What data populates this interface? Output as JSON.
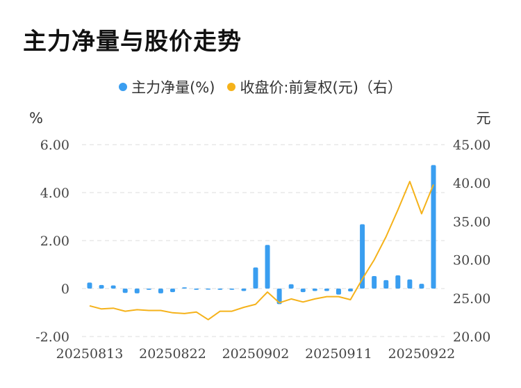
{
  "title": "主力净量与股价走势",
  "legend": {
    "bar_label": "主力净量(%)",
    "line_label": "收盘价:前复权(元)（右）"
  },
  "colors": {
    "bar": "#3a9ef0",
    "line": "#f5b21a",
    "grid": "#dcdcdc"
  },
  "chart_data": {
    "type": "bar",
    "title": "主力净量与股价走势",
    "y_unit_left": "%",
    "y_unit_right": "元",
    "ylim_left": [
      -2,
      6
    ],
    "ylim_right": [
      20,
      45
    ],
    "yticks_left": [
      "6.00",
      "4.00",
      "2.00",
      "0",
      "-2.00"
    ],
    "yticks_right": [
      "45.00",
      "40.00",
      "35.00",
      "30.00",
      "25.00",
      "20.00"
    ],
    "xtick_labels": [
      "20250813",
      "20250822",
      "20250902",
      "20250911",
      "20250922"
    ],
    "xtick_indices": [
      0,
      7,
      14,
      21,
      28
    ],
    "grid": true,
    "legend_position": "top",
    "series": [
      {
        "name": "主力净量(%)",
        "type": "bar",
        "axis": "left",
        "values": [
          0.25,
          0.15,
          0.13,
          -0.18,
          -0.2,
          -0.05,
          -0.2,
          -0.15,
          0.05,
          -0.05,
          -0.02,
          -0.05,
          -0.05,
          -0.1,
          0.88,
          1.82,
          -0.65,
          0.18,
          -0.15,
          -0.1,
          -0.1,
          -0.25,
          -0.12,
          2.68,
          0.52,
          0.35,
          0.55,
          0.38,
          0.2,
          5.15
        ]
      },
      {
        "name": "收盘价:前复权(元)（右）",
        "type": "line",
        "axis": "right",
        "values": [
          24.0,
          23.6,
          23.7,
          23.3,
          23.5,
          23.4,
          23.4,
          23.1,
          23.0,
          23.2,
          22.2,
          23.3,
          23.3,
          23.8,
          24.2,
          25.8,
          24.4,
          24.9,
          24.5,
          24.9,
          25.2,
          25.2,
          24.8,
          27.5,
          30.0,
          33.0,
          36.5,
          40.2,
          36.0,
          39.8
        ]
      }
    ]
  }
}
